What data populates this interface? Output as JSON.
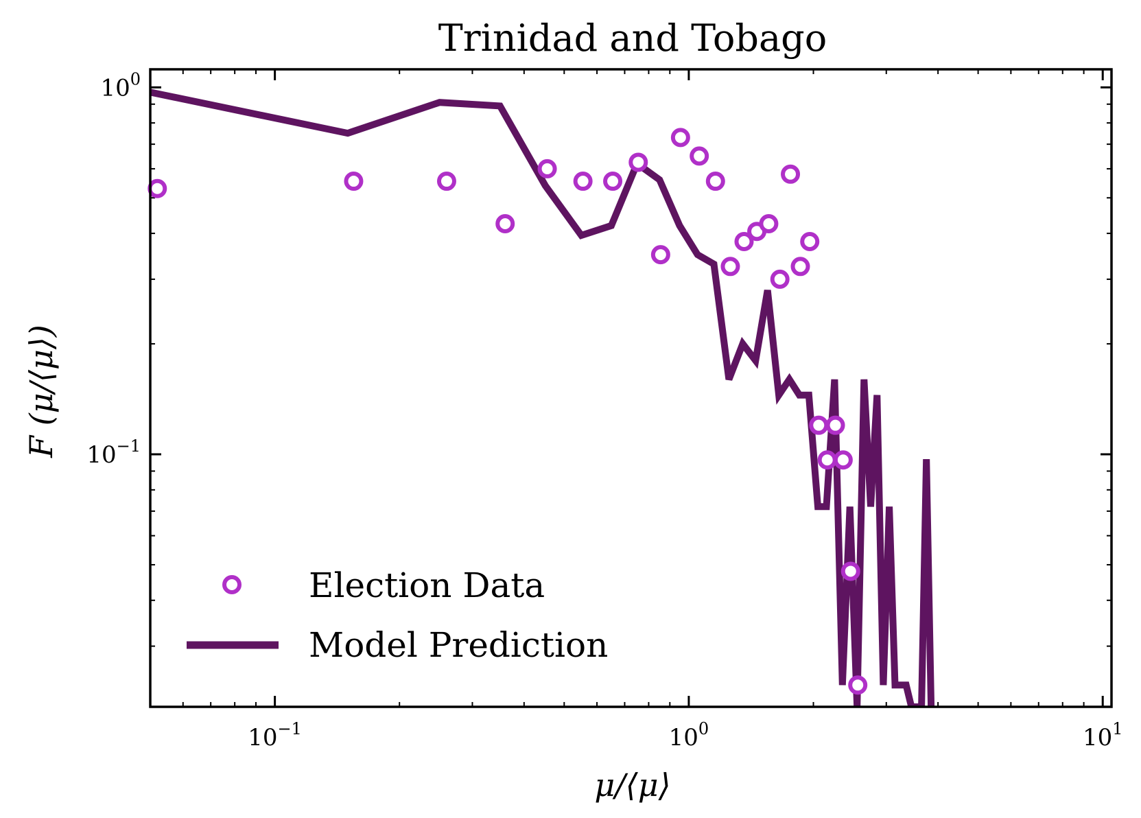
{
  "chart_data": {
    "type": "scatter+line",
    "title": "Trinidad and Tobago",
    "xlabel": "μ/⟨μ⟩",
    "ylabel": "F (μ/⟨μ⟩)",
    "xscale": "log",
    "yscale": "log",
    "xlim": [
      0.05,
      10.5
    ],
    "ylim": [
      0.0205,
      1.12
    ],
    "x_ticks": [
      {
        "value": 0.1,
        "base": "10",
        "exp": "−1"
      },
      {
        "value": 1,
        "base": "10",
        "exp": "0"
      },
      {
        "value": 10,
        "base": "10",
        "exp": "1"
      }
    ],
    "y_ticks": [
      {
        "value": 0.1,
        "base": "10",
        "exp": "−1"
      },
      {
        "value": 1,
        "base": "10",
        "exp": "0"
      }
    ],
    "grid": false,
    "legend_position": "bottom-left",
    "series": [
      {
        "name": "Election Data",
        "kind": "scatter",
        "marker": "hollow-circle",
        "color": "#b030c8",
        "x": [
          0.052,
          0.155,
          0.26,
          0.36,
          0.455,
          0.555,
          0.655,
          0.755,
          0.855,
          0.955,
          1.06,
          1.16,
          1.26,
          1.36,
          1.46,
          1.56,
          1.66,
          1.76,
          1.86,
          1.96,
          2.06,
          2.16,
          2.26,
          2.36,
          2.46,
          2.56
        ],
        "y": [
          0.53,
          0.555,
          0.555,
          0.425,
          0.6,
          0.555,
          0.555,
          0.625,
          0.35,
          0.73,
          0.65,
          0.555,
          0.325,
          0.38,
          0.405,
          0.425,
          0.3,
          0.58,
          0.325,
          0.38,
          0.12,
          0.0965,
          0.12,
          0.0965,
          0.048,
          0.0235
        ]
      },
      {
        "name": "Model Prediction",
        "kind": "line",
        "color": "#5e1460",
        "x": [
          0.05,
          0.15,
          0.25,
          0.35,
          0.45,
          0.55,
          0.65,
          0.75,
          0.85,
          0.95,
          1.05,
          1.15,
          1.25,
          1.35,
          1.45,
          1.55,
          1.65,
          1.75,
          1.85,
          1.95,
          2.05,
          2.15,
          2.25,
          2.35,
          2.45,
          2.55,
          2.65,
          2.75,
          2.85,
          2.95,
          3.05,
          3.15,
          3.25,
          3.35,
          3.45,
          3.55,
          3.65,
          3.75,
          3.85
        ],
        "y": [
          0.97,
          0.75,
          0.91,
          0.89,
          0.54,
          0.395,
          0.42,
          0.62,
          0.56,
          0.42,
          0.35,
          0.33,
          0.16,
          0.2,
          0.18,
          0.28,
          0.145,
          0.16,
          0.145,
          0.145,
          0.072,
          0.072,
          0.16,
          0.0235,
          0.072,
          0.0205,
          0.16,
          0.072,
          0.145,
          0.0235,
          0.072,
          0.0235,
          0.0235,
          0.0235,
          0.0205,
          0.0205,
          0.0205,
          0.097,
          0.0205
        ]
      }
    ]
  }
}
